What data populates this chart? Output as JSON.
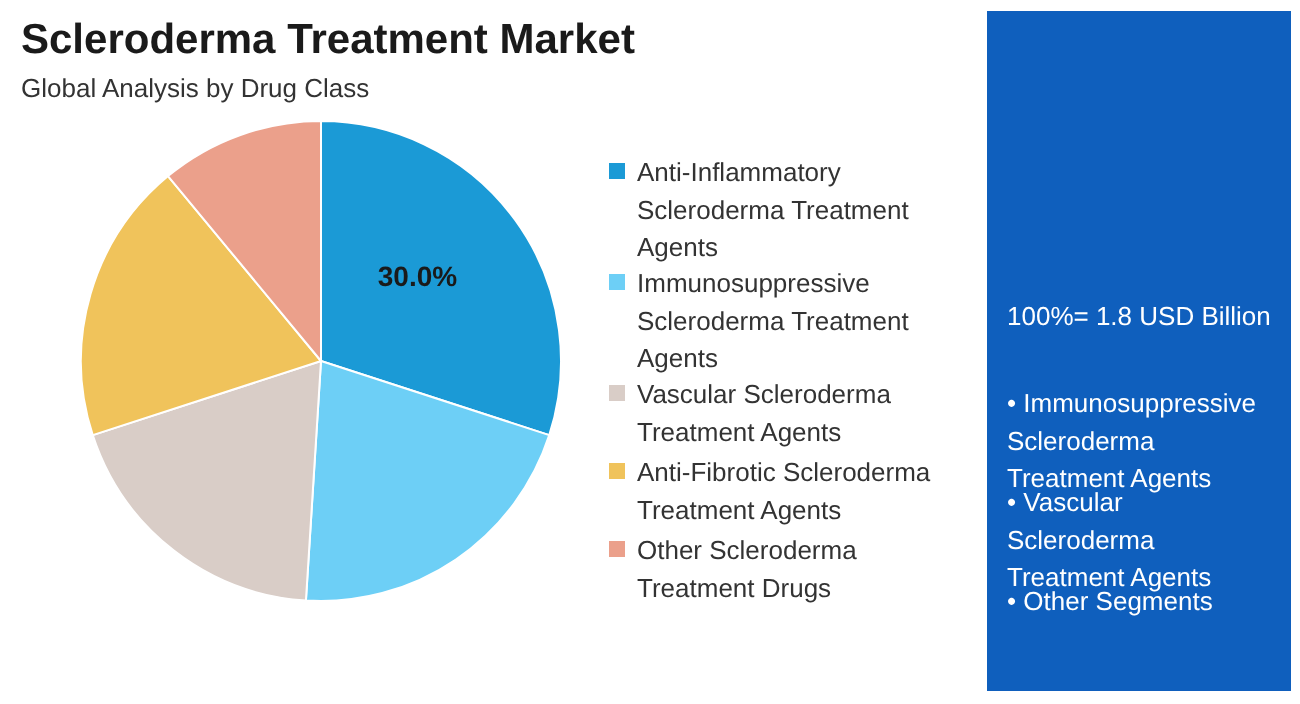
{
  "chart_data": {
    "type": "pie",
    "title": "Scleroderma Treatment Market",
    "subtitle": "Global Analysis by Drug Class",
    "categories": [
      "Anti-Inflammatory Scleroderma Treatment Agents",
      "Immunosuppressive Scleroderma Treatment Agents",
      "Vascular Scleroderma Treatment Agents",
      "Anti-Fibrotic Scleroderma Treatment Agents",
      "Other Scleroderma Treatment Drugs"
    ],
    "values": [
      30,
      21,
      19,
      19,
      11
    ],
    "colors": [
      "#1b9ad6",
      "#6dcff6",
      "#d9cdc7",
      "#f0c35b",
      "#eba08b"
    ],
    "value_labels": [
      "30.0%",
      null,
      null,
      null,
      null
    ],
    "legend": "right",
    "annotations": [
      "100%= 1.8 USD Billion",
      "• Immunosuppressive Scleroderma Treatment Agents",
      "• Vascular Scleroderma Treatment Agents",
      "• Other Segments"
    ]
  }
}
